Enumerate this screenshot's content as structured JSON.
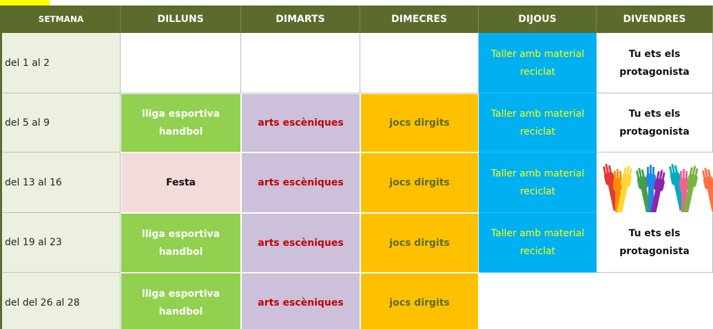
{
  "header": {
    "columns": [
      "SETMANA",
      "DILLUNS",
      "DIMARTS",
      "DIMECRES",
      "DIJOUS",
      "DIVENDRES"
    ]
  },
  "table": {
    "rows": [
      [
        "del 1 al 2",
        null,
        null,
        null,
        "Taller amb material reciclat",
        "Tu ets els protagonista"
      ],
      [
        "del 5 al 9",
        "lliga esportiva handbol",
        "arts escèniques",
        "jocs dirgits",
        "Taller amb material reciclat",
        "Tu ets els protagonista"
      ],
      [
        "del 13 al 16",
        "Festa",
        "arts escèniques",
        "jocs dirgits",
        "Taller amb material reciclat",
        null
      ],
      [
        "del 19 al 23",
        "lliga esportiva handbol",
        "arts escèniques",
        "jocs dirgits",
        "Taller amb material reciclat",
        "Tu ets els protagonista"
      ],
      [
        "del del 26 al 28",
        "lliga esportiva handbol",
        "arts escèniques",
        "jocs dirgits",
        null,
        null
      ]
    ]
  }
}
